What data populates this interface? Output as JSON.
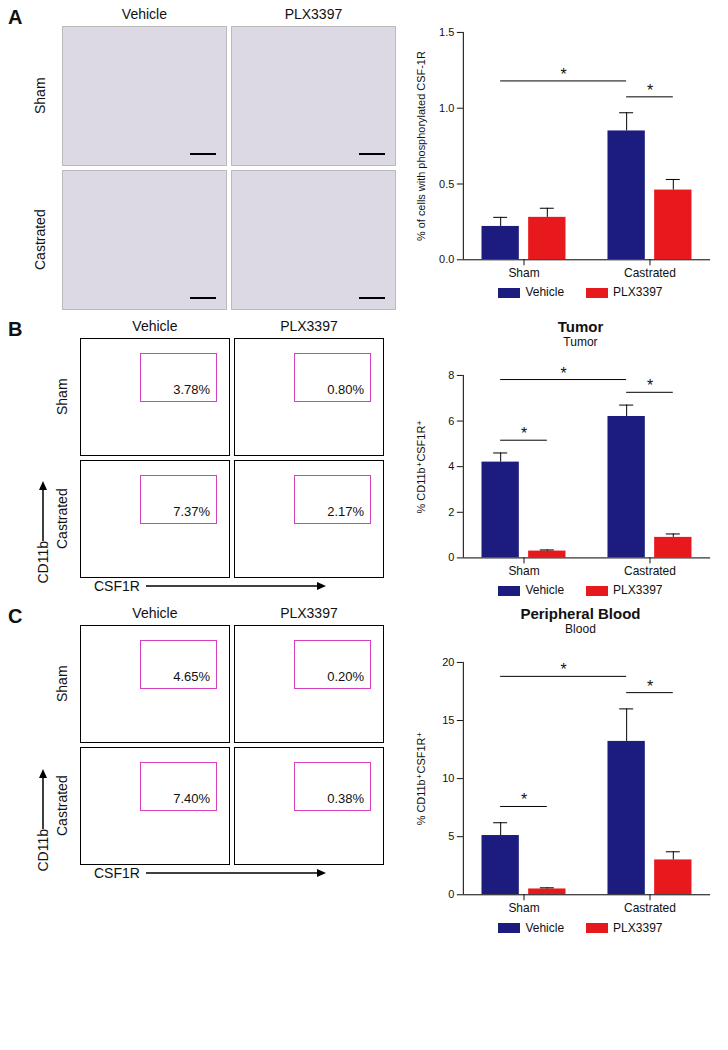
{
  "panels": [
    {
      "label": "A",
      "micrographs": {
        "columns": [
          "Vehicle",
          "PLX3397"
        ],
        "rows": [
          "Sham",
          "Castrated"
        ]
      }
    },
    {
      "label": "B",
      "flow": {
        "columns": [
          "Vehicle",
          "PLX3397"
        ],
        "rows": [
          "Sham",
          "Castrated"
        ],
        "x_label": "CSF1R",
        "y_label": "CD11b",
        "gates": [
          [
            {
              "value": 3.78,
              "label": "3.78%"
            },
            {
              "value": 0.8,
              "label": "0.80%"
            }
          ],
          [
            {
              "value": 7.37,
              "label": "7.37%"
            },
            {
              "value": 2.17,
              "label": "2.17%"
            }
          ]
        ]
      }
    },
    {
      "label": "C",
      "flow": {
        "columns": [
          "Vehicle",
          "PLX3397"
        ],
        "rows": [
          "Sham",
          "Castrated"
        ],
        "x_label": "CSF1R",
        "y_label": "CD11b",
        "gates": [
          [
            {
              "value": 4.65,
              "label": "4.65%"
            },
            {
              "value": 0.2,
              "label": "0.20%"
            }
          ],
          [
            {
              "value": 7.4,
              "label": "7.40%"
            },
            {
              "value": 0.38,
              "label": "0.38%"
            }
          ]
        ]
      }
    }
  ],
  "chart_data": [
    {
      "type": "bar",
      "ylabel": "% of cells with phosphorylated CSF-1R",
      "categories": [
        "Sham",
        "Castrated"
      ],
      "series": [
        {
          "name": "Vehicle",
          "color": "#1c1c7e",
          "values": [
            0.22,
            0.85
          ],
          "errors": [
            0.06,
            0.12
          ]
        },
        {
          "name": "PLX3397",
          "color": "#e8191c",
          "values": [
            0.28,
            0.46
          ],
          "errors": [
            0.06,
            0.07
          ]
        }
      ],
      "ylim": [
        0,
        1.5
      ],
      "yticks": [
        {
          "value": 0,
          "label": "0.0"
        },
        {
          "value": 0.5,
          "label": "0.5"
        },
        {
          "value": 1,
          "label": "1.0"
        },
        {
          "value": 1.5,
          "label": "1.5"
        }
      ],
      "significance": [
        {
          "from": [
            0,
            0
          ],
          "to": [
            1,
            0
          ],
          "label": "*"
        },
        {
          "from": [
            1,
            0
          ],
          "to": [
            1,
            1
          ],
          "label": "*"
        }
      ],
      "legend": "bottom"
    },
    {
      "type": "bar",
      "title": "Tumor",
      "subtitle": "Tumor",
      "ylabel": "% CD11b⁺CSF1R⁺",
      "categories": [
        "Sham",
        "Castrated"
      ],
      "series": [
        {
          "name": "Vehicle",
          "color": "#1c1c7e",
          "values": [
            4.2,
            6.2
          ],
          "errors": [
            0.4,
            0.5
          ]
        },
        {
          "name": "PLX3397",
          "color": "#e8191c",
          "values": [
            0.3,
            0.9
          ],
          "errors": [
            0.05,
            0.15
          ]
        }
      ],
      "ylim": [
        0,
        8
      ],
      "yticks": [
        0,
        2,
        4,
        6,
        8
      ],
      "significance": [
        {
          "from": [
            0,
            0
          ],
          "to": [
            0,
            1
          ],
          "label": "*"
        },
        {
          "from": [
            0,
            0
          ],
          "to": [
            1,
            0
          ],
          "label": "*"
        },
        {
          "from": [
            1,
            0
          ],
          "to": [
            1,
            1
          ],
          "label": "*"
        }
      ],
      "legend": "bottom"
    },
    {
      "type": "bar",
      "title": "Peripheral Blood",
      "subtitle": "Blood",
      "ylabel": "% CD11b⁺CSF1R⁺",
      "categories": [
        "Sham",
        "Castrated"
      ],
      "series": [
        {
          "name": "Vehicle",
          "color": "#1c1c7e",
          "values": [
            5.1,
            13.2
          ],
          "errors": [
            1.1,
            2.8
          ]
        },
        {
          "name": "PLX3397",
          "color": "#e8191c",
          "values": [
            0.5,
            3.0
          ],
          "errors": [
            0.1,
            0.7
          ]
        }
      ],
      "ylim": [
        0,
        20
      ],
      "yticks": [
        0,
        5,
        10,
        15,
        20
      ],
      "significance": [
        {
          "from": [
            0,
            0
          ],
          "to": [
            0,
            1
          ],
          "label": "*"
        },
        {
          "from": [
            0,
            0
          ],
          "to": [
            1,
            0
          ],
          "label": "*"
        },
        {
          "from": [
            1,
            0
          ],
          "to": [
            1,
            1
          ],
          "label": "*"
        }
      ],
      "legend": "bottom"
    }
  ]
}
